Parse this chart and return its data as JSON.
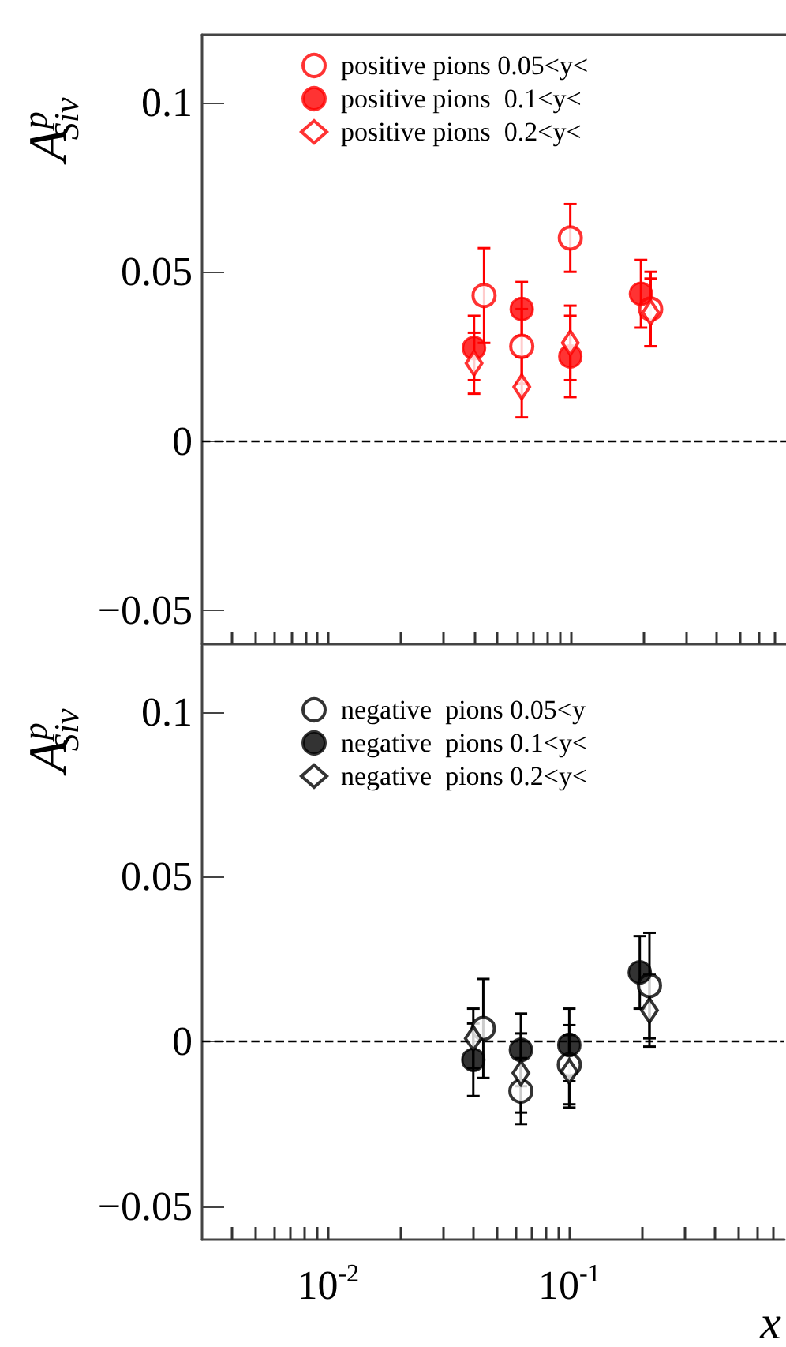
{
  "chart_data": [
    {
      "type": "scatter",
      "ylabel": "A$^{p}$$_{Siv}$",
      "xlim": [
        0.003,
        0.78
      ],
      "ylim": [
        -0.06,
        0.12
      ],
      "log": "x",
      "tick_labels": "y",
      "legend": "top",
      "grid": false,
      "xticks": [
        {
          "value": 0.004,
          "label": null
        },
        {
          "value": 0.005,
          "label": null
        },
        {
          "value": 0.006,
          "label": null
        },
        {
          "value": 0.007,
          "label": null
        },
        {
          "value": 0.008,
          "label": null
        },
        {
          "value": 0.009,
          "label": null
        },
        {
          "value": 0.01,
          "label": null
        },
        {
          "value": 0.02,
          "label": null
        },
        {
          "value": 0.03,
          "label": null
        },
        {
          "value": 0.04,
          "label": null
        },
        {
          "value": 0.05,
          "label": null
        },
        {
          "value": 0.06,
          "label": null
        },
        {
          "value": 0.07,
          "label": null
        },
        {
          "value": 0.08,
          "label": null
        },
        {
          "value": 0.09,
          "label": null
        },
        {
          "value": 0.1,
          "label": null
        },
        {
          "value": 0.2,
          "label": null
        },
        {
          "value": 0.3,
          "label": null
        },
        {
          "value": 0.4,
          "label": null
        },
        {
          "value": 0.5,
          "label": null
        },
        {
          "value": 0.6,
          "label": null
        },
        {
          "value": 0.7,
          "label": null
        }
      ],
      "yticks": [
        {
          "value": -0.05,
          "label": "−0.05"
        },
        0,
        0.05,
        0.1
      ],
      "ref_lines": [
        {
          "axis": "y",
          "value": 0,
          "line_style": "dashed",
          "color": "#000000"
        }
      ],
      "series": [
        {
          "name": "positive pions 0.05<y<",
          "color": "#ff0000",
          "marker": "circle",
          "x": [
            0.044,
            0.063,
            0.1,
            0.215
          ],
          "values": [
            0.043,
            0.028,
            0.06,
            0.039
          ],
          "errors": [
            0.014,
            0.011,
            0.01,
            0.011
          ]
        },
        {
          "name": "positive pions  0.1<y<",
          "color": "#ff0000",
          "marker": "circle",
          "x": [
            0.04,
            0.063,
            0.1,
            0.196
          ],
          "values": [
            0.0275,
            0.039,
            0.025,
            0.0435
          ],
          "errors": [
            0.0095,
            0.008,
            0.012,
            0.01
          ]
        },
        {
          "name": "positive pions  0.2<y<",
          "color": "#ff0000",
          "marker": "diamond",
          "x": [
            0.04,
            0.063,
            0.1,
            0.215
          ],
          "values": [
            0.023,
            0.016,
            0.029,
            0.038
          ],
          "errors": [
            0.009,
            0.009,
            0.011,
            0.01
          ]
        }
      ]
    },
    {
      "type": "scatter",
      "ylabel": "A$^{p}$$_{Siv}$",
      "xlabel": "x",
      "xlim": [
        0.003,
        0.78
      ],
      "ylim": [
        -0.06,
        0.12
      ],
      "log": "x",
      "legend": "top",
      "grid": false,
      "xticks": [
        {
          "value": 0.004,
          "label": null
        },
        {
          "value": 0.005,
          "label": null
        },
        {
          "value": 0.006,
          "label": null
        },
        {
          "value": 0.007,
          "label": null
        },
        {
          "value": 0.008,
          "label": null
        },
        {
          "value": 0.009,
          "label": null
        },
        {
          "value": 0.01,
          "label": "10$^{-2}$"
        },
        {
          "value": 0.02,
          "label": null
        },
        {
          "value": 0.03,
          "label": null
        },
        {
          "value": 0.04,
          "label": null
        },
        {
          "value": 0.05,
          "label": null
        },
        {
          "value": 0.06,
          "label": null
        },
        {
          "value": 0.07,
          "label": null
        },
        {
          "value": 0.08,
          "label": null
        },
        {
          "value": 0.09,
          "label": null
        },
        {
          "value": 0.1,
          "label": "10$^{-1}$"
        },
        {
          "value": 0.2,
          "label": null
        },
        {
          "value": 0.3,
          "label": null
        },
        {
          "value": 0.4,
          "label": null
        },
        {
          "value": 0.5,
          "label": null
        },
        {
          "value": 0.6,
          "label": null
        },
        {
          "value": 0.7,
          "label": null
        }
      ],
      "yticks": [
        {
          "value": -0.05,
          "label": "−0.05"
        },
        0,
        0.05,
        0.1
      ],
      "ref_lines": [
        {
          "axis": "y",
          "value": 0,
          "line_style": "dashed",
          "color": "#000000"
        }
      ],
      "series": [
        {
          "name": "negative  pions 0.05<y",
          "color": "#000000",
          "marker": "circle",
          "x": [
            0.044,
            0.063,
            0.1,
            0.215
          ],
          "values": [
            0.004,
            -0.015,
            -0.007,
            0.017
          ],
          "errors": [
            0.015,
            0.01,
            0.012,
            0.016
          ]
        },
        {
          "name": "negative  pions 0.1<y<",
          "color": "#000000",
          "marker": "circle",
          "x": [
            0.04,
            0.063,
            0.1,
            0.196
          ],
          "values": [
            -0.0055,
            -0.0025,
            -0.001,
            0.021
          ],
          "errors": [
            0.011,
            0.011,
            0.011,
            0.011
          ]
        },
        {
          "name": "negative  pions 0.2<y<",
          "color": "#000000",
          "marker": "diamond",
          "x": [
            0.04,
            0.063,
            0.1,
            0.215
          ],
          "values": [
            0.001,
            -0.0095,
            -0.009,
            0.0095
          ],
          "errors": [
            0.009,
            0.012,
            0.011,
            0.011
          ]
        }
      ]
    }
  ]
}
